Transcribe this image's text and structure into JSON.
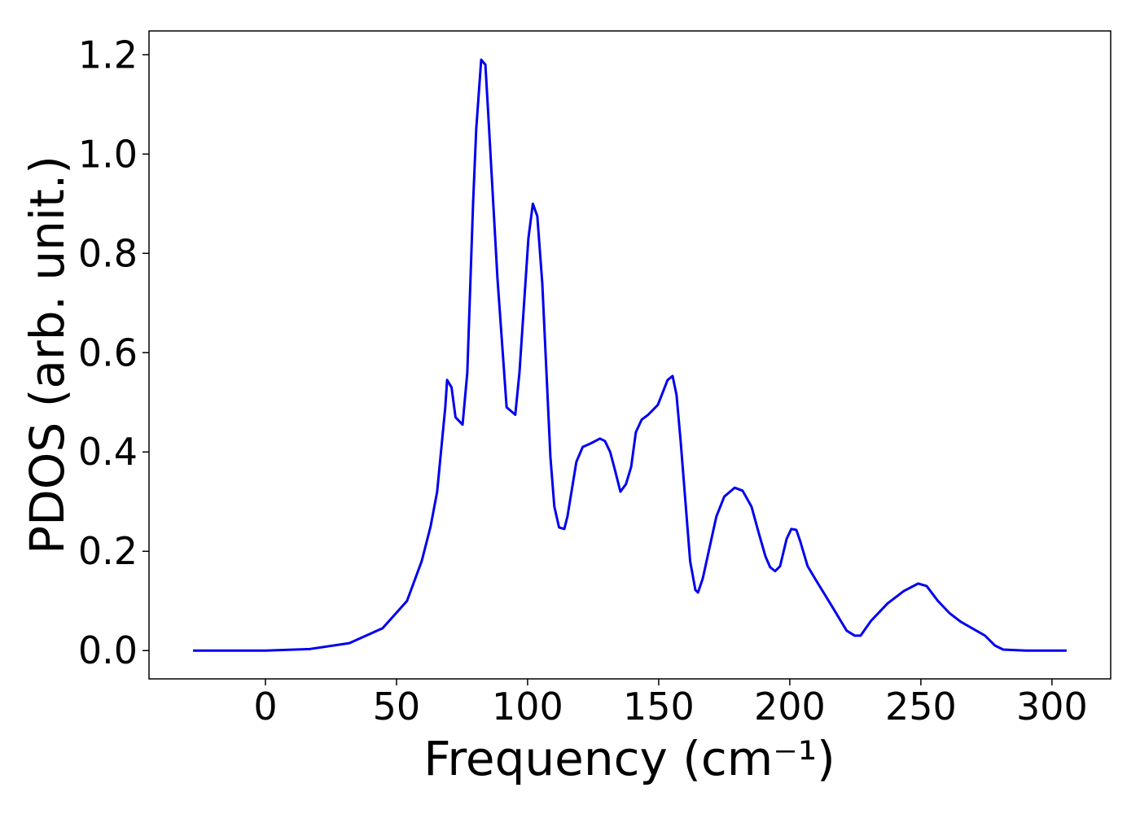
{
  "chart_data": {
    "type": "line",
    "xlabel": "Frequency (cm⁻¹)",
    "ylabel": "PDOS (arb. unit.)",
    "xlim": [
      -44.4,
      322.4
    ],
    "ylim": [
      -0.057,
      1.248
    ],
    "xticks": [
      0,
      50,
      100,
      150,
      200,
      250,
      300
    ],
    "yticks": [
      {
        "value": 0,
        "label": "0.0"
      },
      {
        "value": 0.2,
        "label": "0.2"
      },
      {
        "value": 0.4,
        "label": "0.4"
      },
      {
        "value": 0.6,
        "label": "0.6"
      },
      {
        "value": 0.8,
        "label": "0.8"
      },
      {
        "value": 1.0,
        "label": "1.0"
      },
      {
        "value": 1.2,
        "label": "1.2"
      }
    ],
    "grid": false,
    "x": [
      -27.6,
      0,
      16.8,
      32,
      44.7,
      54,
      59.6,
      63,
      65.5,
      68.6,
      69.3,
      71,
      72.5,
      75.2,
      77,
      79.2,
      80.4,
      82.3,
      83.9,
      85,
      88.5,
      92,
      95.3,
      96.9,
      100.3,
      102,
      103.7,
      105.6,
      108.7,
      110.2,
      112,
      114,
      115.2,
      118.6,
      121,
      124,
      127.6,
      129.5,
      131.5,
      133.5,
      135.4,
      137.5,
      139.5,
      141.3,
      143.5,
      146,
      149.7,
      153.4,
      155.3,
      156.8,
      158.4,
      160.2,
      162,
      164,
      165,
      166.8,
      169.5,
      172,
      175,
      179,
      182,
      185.4,
      188,
      190.7,
      192.5,
      194.4,
      196.3,
      198.8,
      200.6,
      202.5,
      204,
      206.8,
      210.2,
      216,
      221.7,
      224.8,
      227,
      231,
      237.3,
      243.5,
      249,
      252.2,
      256.5,
      261,
      265.2,
      274.5,
      278.3,
      281.4,
      290,
      305.6
    ],
    "series": [
      {
        "name": "PDOS",
        "color": "#0000ee",
        "values": [
          0,
          0,
          0.003,
          0.015,
          0.045,
          0.1,
          0.18,
          0.25,
          0.32,
          0.49,
          0.545,
          0.53,
          0.47,
          0.455,
          0.56,
          0.9,
          1.05,
          1.19,
          1.18,
          1.08,
          0.75,
          0.49,
          0.475,
          0.56,
          0.83,
          0.9,
          0.875,
          0.74,
          0.39,
          0.29,
          0.248,
          0.245,
          0.27,
          0.38,
          0.41,
          0.417,
          0.427,
          0.422,
          0.4,
          0.36,
          0.32,
          0.335,
          0.37,
          0.44,
          0.465,
          0.475,
          0.495,
          0.545,
          0.553,
          0.515,
          0.42,
          0.3,
          0.18,
          0.122,
          0.117,
          0.145,
          0.21,
          0.27,
          0.31,
          0.328,
          0.322,
          0.29,
          0.24,
          0.19,
          0.168,
          0.16,
          0.17,
          0.225,
          0.245,
          0.243,
          0.22,
          0.17,
          0.14,
          0.09,
          0.04,
          0.03,
          0.03,
          0.06,
          0.095,
          0.12,
          0.135,
          0.13,
          0.1,
          0.075,
          0.058,
          0.03,
          0.01,
          0.002,
          0,
          0
        ]
      }
    ]
  }
}
